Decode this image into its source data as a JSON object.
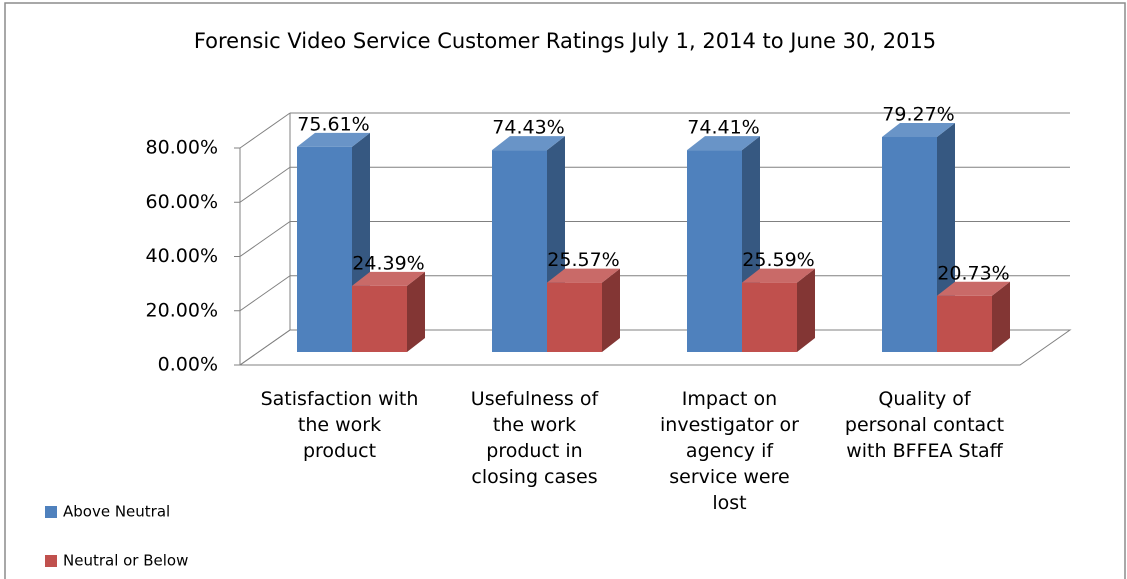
{
  "chart_data": {
    "type": "bar",
    "title": "Forensic Video Service Customer Ratings July 1, 2014 to June 30, 2015",
    "categories": [
      "Satisfaction with the work product",
      "Usefulness of the work product in closing cases",
      "Impact on investigator or agency if service were lost",
      "Quality of personal contact with BFFEA Staff"
    ],
    "series": [
      {
        "name": "Above Neutral",
        "color": "#4f81bd",
        "values": [
          75.61,
          74.43,
          74.41,
          79.27
        ],
        "value_labels": [
          "75.61%",
          "74.43%",
          "74.41%",
          "79.27%"
        ]
      },
      {
        "name": "Neutral or Below",
        "color": "#c0504d",
        "values": [
          24.39,
          25.57,
          25.59,
          20.73
        ],
        "value_labels": [
          "24.39%",
          "25.57%",
          "25.59%",
          "20.73%"
        ]
      }
    ],
    "ylim": [
      0,
      80
    ],
    "yticks": [
      {
        "value": 0,
        "label": "0.00%"
      },
      {
        "value": 20,
        "label": "20.00%"
      },
      {
        "value": 40,
        "label": "40.00%"
      },
      {
        "value": 60,
        "label": "60.00%"
      },
      {
        "value": 80,
        "label": "80.00%"
      }
    ],
    "grid": true,
    "legend": "left"
  }
}
